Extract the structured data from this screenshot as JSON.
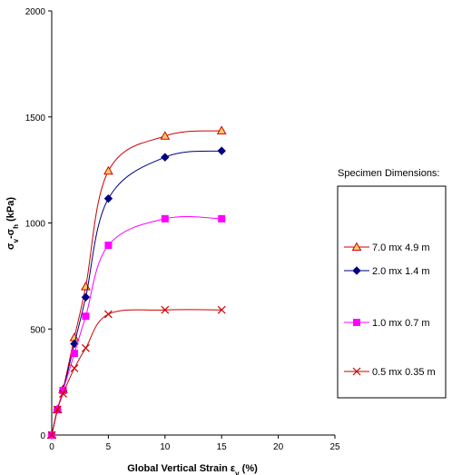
{
  "chart_data": {
    "type": "line",
    "xlabel": {
      "main": "Global Vertical Strain ε",
      "sub": "v",
      "suffix": " (%)"
    },
    "ylabel": {
      "sigma1": "σ",
      "sub1": "v",
      "dash": "-σ",
      "sub2": "h",
      "suffix": " (kPa)"
    },
    "xlim": [
      0,
      25
    ],
    "ylim": [
      0,
      2000
    ],
    "xticks": [
      0,
      5,
      10,
      15,
      20,
      25
    ],
    "yticks": [
      0,
      500,
      1000,
      1500,
      2000
    ],
    "grid": false,
    "legend": {
      "title": "Specimen Dimensions:",
      "placement": "right"
    },
    "series": [
      {
        "name": "7.0 mx 4.9 m",
        "color": "#cc0000",
        "marker": "triangle",
        "x": [
          0,
          0.5,
          1,
          2,
          3,
          5,
          10,
          15
        ],
        "y": [
          0,
          120,
          215,
          460,
          700,
          1245,
          1410,
          1435
        ]
      },
      {
        "name": "2.0 mx 1.4 m",
        "color": "#000080",
        "marker": "diamond",
        "x": [
          0,
          0.5,
          1,
          2,
          3,
          5,
          10,
          15
        ],
        "y": [
          0,
          120,
          210,
          430,
          650,
          1115,
          1310,
          1340
        ]
      },
      {
        "name": "1.0 mx 0.7 m",
        "color": "#ff00ff",
        "marker": "square",
        "x": [
          0,
          0.5,
          1,
          2,
          3,
          5,
          10,
          15
        ],
        "y": [
          0,
          120,
          210,
          385,
          560,
          895,
          1020,
          1020
        ]
      },
      {
        "name": "0.5 mx 0.35 m",
        "color": "#cc0000",
        "marker": "x",
        "x": [
          0,
          0.5,
          1,
          2,
          3,
          5,
          10,
          15
        ],
        "y": [
          0,
          120,
          195,
          315,
          410,
          570,
          590,
          590
        ]
      }
    ]
  }
}
